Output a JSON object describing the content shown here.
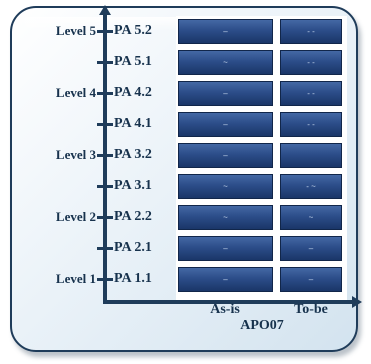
{
  "chart_data": {
    "type": "table",
    "process": "APO07",
    "columns": [
      "As-is",
      "To-be"
    ],
    "rows": [
      {
        "level": "Level 5",
        "attribute": "PA 5.2",
        "as_is": "–",
        "to_be": "- -"
      },
      {
        "level": "",
        "attribute": "PA 5.1",
        "as_is": "~",
        "to_be": "- -"
      },
      {
        "level": "Level 4",
        "attribute": "PA 4.2",
        "as_is": "–",
        "to_be": "- -"
      },
      {
        "level": "",
        "attribute": "PA 4.1",
        "as_is": "–",
        "to_be": "- -"
      },
      {
        "level": "Level 3",
        "attribute": "PA 3.2",
        "as_is": "–",
        "to_be": ""
      },
      {
        "level": "",
        "attribute": "PA 3.1",
        "as_is": "~",
        "to_be": "- ~"
      },
      {
        "level": "Level 2",
        "attribute": "PA 2.2",
        "as_is": "~",
        "to_be": "~"
      },
      {
        "level": "",
        "attribute": "PA 2.1",
        "as_is": "–",
        "to_be": "–"
      },
      {
        "level": "Level 1",
        "attribute": "PA 1.1",
        "as_is": "–",
        "to_be": "–"
      }
    ]
  }
}
